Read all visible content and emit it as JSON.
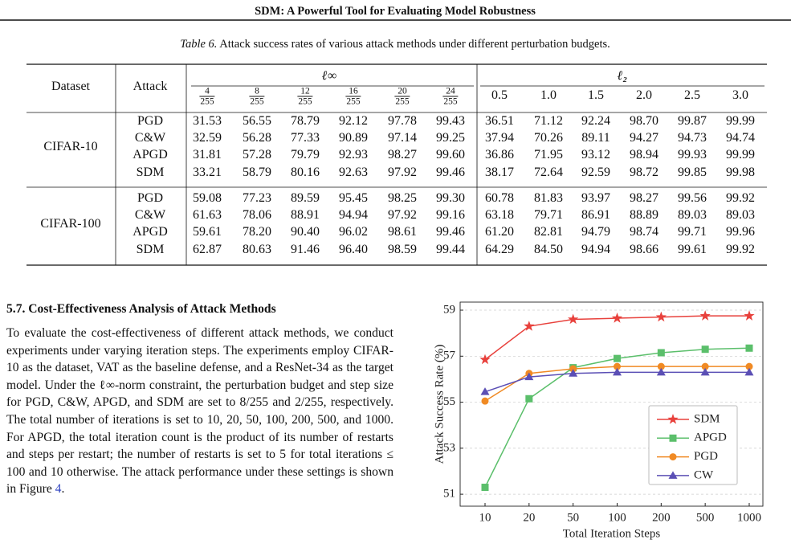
{
  "header": {
    "title": "SDM: A Powerful Tool for Evaluating Model Robustness"
  },
  "table": {
    "caption_label": "Table 6.",
    "caption": "Attack success rates of various attack methods under different perturbation budgets.",
    "columns": [
      "Dataset",
      "Attack"
    ],
    "groups": [
      {
        "label": "ℓ∞",
        "columns": [
          {
            "num": "4",
            "den": "255"
          },
          {
            "num": "8",
            "den": "255"
          },
          {
            "num": "12",
            "den": "255"
          },
          {
            "num": "16",
            "den": "255"
          },
          {
            "num": "20",
            "den": "255"
          },
          {
            "num": "24",
            "den": "255"
          }
        ]
      },
      {
        "label": "ℓ₂",
        "columns": [
          "0.5",
          "1.0",
          "1.5",
          "2.0",
          "2.5",
          "3.0"
        ]
      }
    ],
    "blocks": [
      {
        "dataset": "CIFAR-10",
        "rows": [
          [
            "PGD",
            "31.53",
            "56.55",
            "78.79",
            "92.12",
            "97.78",
            "99.43",
            "36.51",
            "71.12",
            "92.24",
            "98.70",
            "99.87",
            "99.99"
          ],
          [
            "C&W",
            "32.59",
            "56.28",
            "77.33",
            "90.89",
            "97.14",
            "99.25",
            "37.94",
            "70.26",
            "89.11",
            "94.27",
            "94.73",
            "94.74"
          ],
          [
            "APGD",
            "31.81",
            "57.28",
            "79.79",
            "92.93",
            "98.27",
            "99.60",
            "36.86",
            "71.95",
            "93.12",
            "98.94",
            "99.93",
            "99.99"
          ],
          [
            "SDM",
            "33.21",
            "58.79",
            "80.16",
            "92.63",
            "97.92",
            "99.46",
            "38.17",
            "72.64",
            "92.59",
            "98.72",
            "99.85",
            "99.98"
          ]
        ]
      },
      {
        "dataset": "CIFAR-100",
        "rows": [
          [
            "PGD",
            "59.08",
            "77.23",
            "89.59",
            "95.45",
            "98.25",
            "99.30",
            "60.78",
            "81.83",
            "93.97",
            "98.27",
            "99.56",
            "99.92"
          ],
          [
            "C&W",
            "61.63",
            "78.06",
            "88.91",
            "94.94",
            "97.92",
            "99.16",
            "63.18",
            "79.71",
            "86.91",
            "88.89",
            "89.03",
            "89.03"
          ],
          [
            "APGD",
            "59.61",
            "78.20",
            "90.40",
            "96.02",
            "98.61",
            "99.46",
            "61.20",
            "82.81",
            "94.79",
            "98.74",
            "99.71",
            "99.96"
          ],
          [
            "SDM",
            "62.87",
            "80.63",
            "91.46",
            "96.40",
            "98.59",
            "99.44",
            "64.29",
            "84.50",
            "94.94",
            "98.66",
            "99.61",
            "99.92"
          ]
        ]
      }
    ]
  },
  "section": {
    "heading": "5.7. Cost-Effectiveness Analysis of Attack Methods",
    "paragraph": "To evaluate the cost-effectiveness of different attack methods, we conduct experiments under varying iteration steps. The experiments employ CIFAR-10 as the dataset, VAT as the baseline defense, and a ResNet-34 as the target model. Under the ℓ∞-norm constraint, the perturbation budget and step size for PGD, C&W, APGD, and SDM are set to 8/255 and 2/255, respectively. The total number of iterations is set to 10, 20, 50, 100, 200, 500, and 1000. For APGD, the total iteration count is the product of its number of restarts and steps per restart; the number of restarts is set to 5 for total iterations ≤ 100 and 10 otherwise. The attack performance under these settings is shown in Figure ",
    "figure_ref": "4",
    "paragraph_end": "."
  },
  "chart_data": {
    "type": "line",
    "x_label": "Total Iteration Steps",
    "y_label": "Attack Success Rate (%)",
    "categories": [
      "10",
      "20",
      "50",
      "100",
      "200",
      "500",
      "1000"
    ],
    "ylim": [
      50.48,
      59.35
    ],
    "yticks": [
      51,
      53,
      55,
      57,
      59
    ],
    "grid": true,
    "legend": "lower right",
    "series": [
      {
        "name": "SDM",
        "color": "#e8413c",
        "marker": "star",
        "values": [
          56.85,
          58.3,
          58.6,
          58.65,
          58.7,
          58.75,
          58.75
        ]
      },
      {
        "name": "APGD",
        "color": "#5bbf6b",
        "marker": "square",
        "values": [
          51.3,
          55.15,
          56.5,
          56.9,
          57.15,
          57.3,
          57.35
        ]
      },
      {
        "name": "PGD",
        "color": "#f08a24",
        "marker": "circle",
        "values": [
          55.05,
          56.25,
          56.45,
          56.55,
          56.55,
          56.55,
          56.55
        ]
      },
      {
        "name": "CW",
        "color": "#5b4fb5",
        "marker": "triangle",
        "values": [
          55.45,
          56.1,
          56.25,
          56.3,
          56.3,
          56.3,
          56.3
        ]
      }
    ]
  }
}
